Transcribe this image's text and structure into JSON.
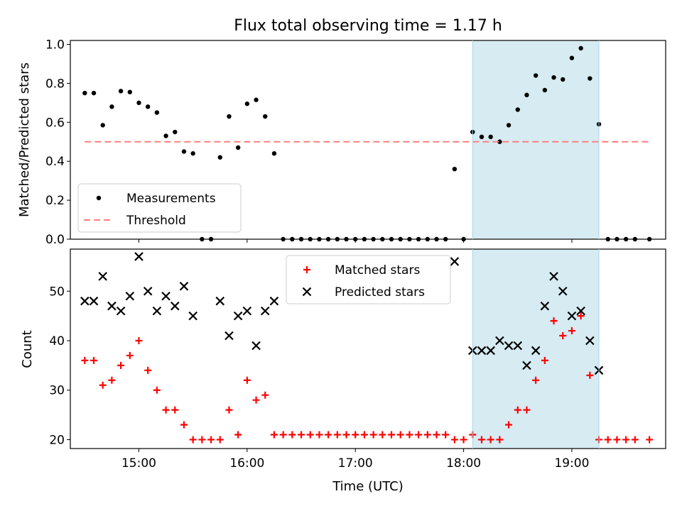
{
  "title": "Flux total observing time = 1.17 h",
  "chart_data": [
    {
      "type": "scatter",
      "ylabel": "Matched/Predicted stars",
      "ylim": [
        0,
        1.02
      ],
      "yticks": [
        "0.0",
        "0.2",
        "0.4",
        "0.6",
        "0.8",
        "1.0"
      ],
      "ytick_values": [
        0,
        0.2,
        0.4,
        0.6,
        0.8,
        1.0
      ],
      "grid": false,
      "legend": {
        "location": "lower-left"
      },
      "highlight_band": {
        "x_start": "18:05",
        "x_end": "19:15",
        "color": "#add8e6"
      },
      "series": [
        {
          "name": "Measurements",
          "marker": "dot",
          "color": "#000000",
          "points": [
            [
              "14:30",
              0.75
            ],
            [
              "14:35",
              0.75
            ],
            [
              "14:40",
              0.585
            ],
            [
              "14:45",
              0.68
            ],
            [
              "14:50",
              0.76
            ],
            [
              "14:55",
              0.755
            ],
            [
              "15:00",
              0.7
            ],
            [
              "15:05",
              0.68
            ],
            [
              "15:10",
              0.65
            ],
            [
              "15:15",
              0.53
            ],
            [
              "15:20",
              0.55
            ],
            [
              "15:25",
              0.45
            ],
            [
              "15:30",
              0.44
            ],
            [
              "15:35",
              0.0
            ],
            [
              "15:40",
              0.0
            ],
            [
              "15:45",
              0.42
            ],
            [
              "15:50",
              0.63
            ],
            [
              "15:55",
              0.47
            ],
            [
              "16:00",
              0.695
            ],
            [
              "16:05",
              0.715
            ],
            [
              "16:10",
              0.63
            ],
            [
              "16:15",
              0.44
            ],
            [
              "16:20",
              0.0
            ],
            [
              "16:25",
              0.0
            ],
            [
              "16:30",
              0.0
            ],
            [
              "16:35",
              0.0
            ],
            [
              "16:40",
              0.0
            ],
            [
              "16:45",
              0.0
            ],
            [
              "16:50",
              0.0
            ],
            [
              "16:55",
              0.0
            ],
            [
              "17:00",
              0.0
            ],
            [
              "17:05",
              0.0
            ],
            [
              "17:10",
              0.0
            ],
            [
              "17:15",
              0.0
            ],
            [
              "17:20",
              0.0
            ],
            [
              "17:25",
              0.0
            ],
            [
              "17:30",
              0.0
            ],
            [
              "17:35",
              0.0
            ],
            [
              "17:40",
              0.0
            ],
            [
              "17:45",
              0.0
            ],
            [
              "17:50",
              0.0
            ],
            [
              "17:55",
              0.36
            ],
            [
              "18:00",
              0.0
            ],
            [
              "18:05",
              0.55
            ],
            [
              "18:10",
              0.525
            ],
            [
              "18:15",
              0.525
            ],
            [
              "18:20",
              0.5
            ],
            [
              "18:25",
              0.585
            ],
            [
              "18:30",
              0.665
            ],
            [
              "18:35",
              0.74
            ],
            [
              "18:40",
              0.84
            ],
            [
              "18:45",
              0.765
            ],
            [
              "18:50",
              0.83
            ],
            [
              "18:55",
              0.82
            ],
            [
              "19:00",
              0.93
            ],
            [
              "19:05",
              0.98
            ],
            [
              "19:10",
              0.825
            ],
            [
              "19:15",
              0.59
            ],
            [
              "19:20",
              0.0
            ],
            [
              "19:25",
              0.0
            ],
            [
              "19:30",
              0.0
            ],
            [
              "19:35",
              0.0
            ],
            [
              "19:43",
              0.0
            ]
          ]
        },
        {
          "name": "Threshold",
          "marker": "dashed-line",
          "color": "#ff7f7f",
          "points": [
            [
              "14:30",
              0.5
            ],
            [
              "19:43",
              0.5
            ]
          ]
        }
      ]
    },
    {
      "type": "scatter",
      "xlabel": "Time (UTC)",
      "ylabel": "Count",
      "ylim": [
        18.2,
        58.5
      ],
      "yticks": [
        "20",
        "30",
        "40",
        "50"
      ],
      "ytick_values": [
        20,
        30,
        40,
        50
      ],
      "xticks": [
        "15:00",
        "16:00",
        "17:00",
        "18:00",
        "19:00"
      ],
      "xlim": [
        "14:22",
        "19:52"
      ],
      "grid": false,
      "legend": {
        "location": "top-center"
      },
      "highlight_band": {
        "x_start": "18:05",
        "x_end": "19:15",
        "color": "#add8e6"
      },
      "series": [
        {
          "name": "Matched stars",
          "marker": "plus",
          "color": "#ff0000",
          "points": [
            [
              "14:30",
              36
            ],
            [
              "14:35",
              36
            ],
            [
              "14:40",
              31
            ],
            [
              "14:45",
              32
            ],
            [
              "14:50",
              35
            ],
            [
              "14:55",
              37
            ],
            [
              "15:00",
              40
            ],
            [
              "15:05",
              34
            ],
            [
              "15:10",
              30
            ],
            [
              "15:15",
              26
            ],
            [
              "15:20",
              26
            ],
            [
              "15:25",
              23
            ],
            [
              "15:30",
              20
            ],
            [
              "15:35",
              20
            ],
            [
              "15:40",
              20
            ],
            [
              "15:45",
              20
            ],
            [
              "15:50",
              26
            ],
            [
              "15:55",
              21
            ],
            [
              "16:00",
              32
            ],
            [
              "16:05",
              28
            ],
            [
              "16:10",
              29
            ],
            [
              "16:15",
              21
            ],
            [
              "16:20",
              21
            ],
            [
              "16:25",
              21
            ],
            [
              "16:30",
              21
            ],
            [
              "16:35",
              21
            ],
            [
              "16:40",
              21
            ],
            [
              "16:45",
              21
            ],
            [
              "16:50",
              21
            ],
            [
              "16:55",
              21
            ],
            [
              "17:00",
              21
            ],
            [
              "17:05",
              21
            ],
            [
              "17:10",
              21
            ],
            [
              "17:15",
              21
            ],
            [
              "17:20",
              21
            ],
            [
              "17:25",
              21
            ],
            [
              "17:30",
              21
            ],
            [
              "17:35",
              21
            ],
            [
              "17:40",
              21
            ],
            [
              "17:45",
              21
            ],
            [
              "17:50",
              21
            ],
            [
              "17:55",
              20
            ],
            [
              "18:00",
              20
            ],
            [
              "18:05",
              21
            ],
            [
              "18:10",
              20
            ],
            [
              "18:15",
              20
            ],
            [
              "18:20",
              20
            ],
            [
              "18:25",
              23
            ],
            [
              "18:30",
              26
            ],
            [
              "18:35",
              26
            ],
            [
              "18:40",
              32
            ],
            [
              "18:45",
              36
            ],
            [
              "18:50",
              44
            ],
            [
              "18:55",
              41
            ],
            [
              "19:00",
              42
            ],
            [
              "19:05",
              45
            ],
            [
              "19:10",
              33
            ],
            [
              "19:15",
              20
            ],
            [
              "19:20",
              20
            ],
            [
              "19:25",
              20
            ],
            [
              "19:30",
              20
            ],
            [
              "19:35",
              20
            ],
            [
              "19:43",
              20
            ]
          ]
        },
        {
          "name": "Predicted stars",
          "marker": "x",
          "color": "#000000",
          "points": [
            [
              "14:30",
              48
            ],
            [
              "14:35",
              48
            ],
            [
              "14:40",
              53
            ],
            [
              "14:45",
              47
            ],
            [
              "14:50",
              46
            ],
            [
              "14:55",
              49
            ],
            [
              "15:00",
              57
            ],
            [
              "15:05",
              50
            ],
            [
              "15:10",
              46
            ],
            [
              "15:15",
              49
            ],
            [
              "15:20",
              47
            ],
            [
              "15:25",
              51
            ],
            [
              "15:30",
              45
            ],
            [
              "15:45",
              48
            ],
            [
              "15:50",
              41
            ],
            [
              "15:55",
              45
            ],
            [
              "16:00",
              46
            ],
            [
              "16:05",
              39
            ],
            [
              "16:10",
              46
            ],
            [
              "16:15",
              48
            ],
            [
              "17:55",
              56
            ],
            [
              "18:05",
              38
            ],
            [
              "18:10",
              38
            ],
            [
              "18:15",
              38
            ],
            [
              "18:20",
              40
            ],
            [
              "18:25",
              39
            ],
            [
              "18:30",
              39
            ],
            [
              "18:35",
              35
            ],
            [
              "18:40",
              38
            ],
            [
              "18:45",
              47
            ],
            [
              "18:50",
              53
            ],
            [
              "18:55",
              50
            ],
            [
              "19:00",
              45
            ],
            [
              "19:05",
              46
            ],
            [
              "19:10",
              40
            ],
            [
              "19:15",
              34
            ]
          ]
        }
      ]
    }
  ]
}
